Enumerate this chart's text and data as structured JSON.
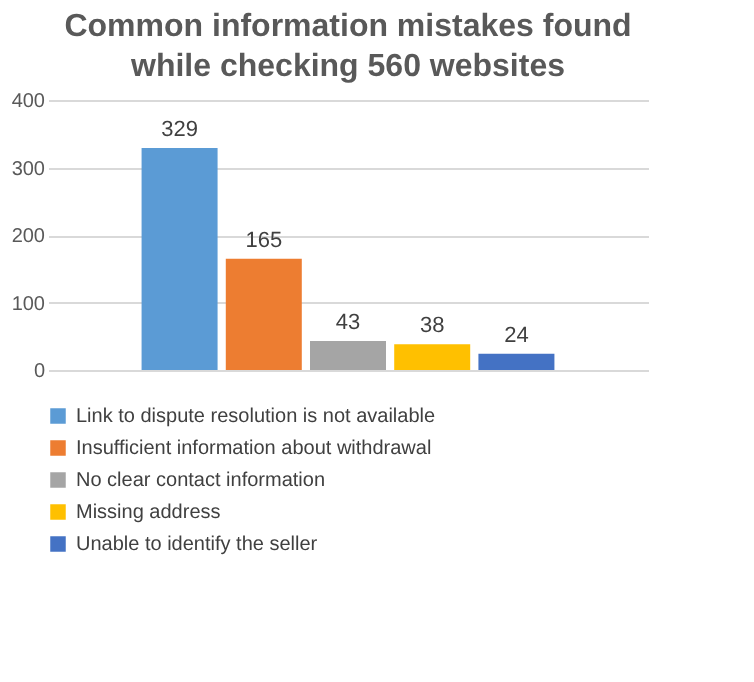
{
  "chart_data": {
    "type": "bar",
    "title": "Common information mistakes found\nwhile checking 560 websites",
    "categories": [
      null
    ],
    "series": [
      {
        "name": "Link to dispute resolution is not available",
        "color": "#5b9bd5",
        "values": [
          329
        ]
      },
      {
        "name": "Insufficient information about withdrawal",
        "color": "#ed7d31",
        "values": [
          165
        ]
      },
      {
        "name": "No clear contact information",
        "color": "#a5a5a5",
        "values": [
          43
        ]
      },
      {
        "name": "Missing address",
        "color": "#ffc000",
        "values": [
          38
        ]
      },
      {
        "name": "Unable to identify the seller",
        "color": "#4472c4",
        "values": [
          24
        ]
      }
    ],
    "ylim": [
      0,
      400
    ],
    "yticks": [
      0,
      100,
      200,
      300,
      400
    ],
    "grid": "y",
    "data_labels": true,
    "legend": "bottom"
  }
}
